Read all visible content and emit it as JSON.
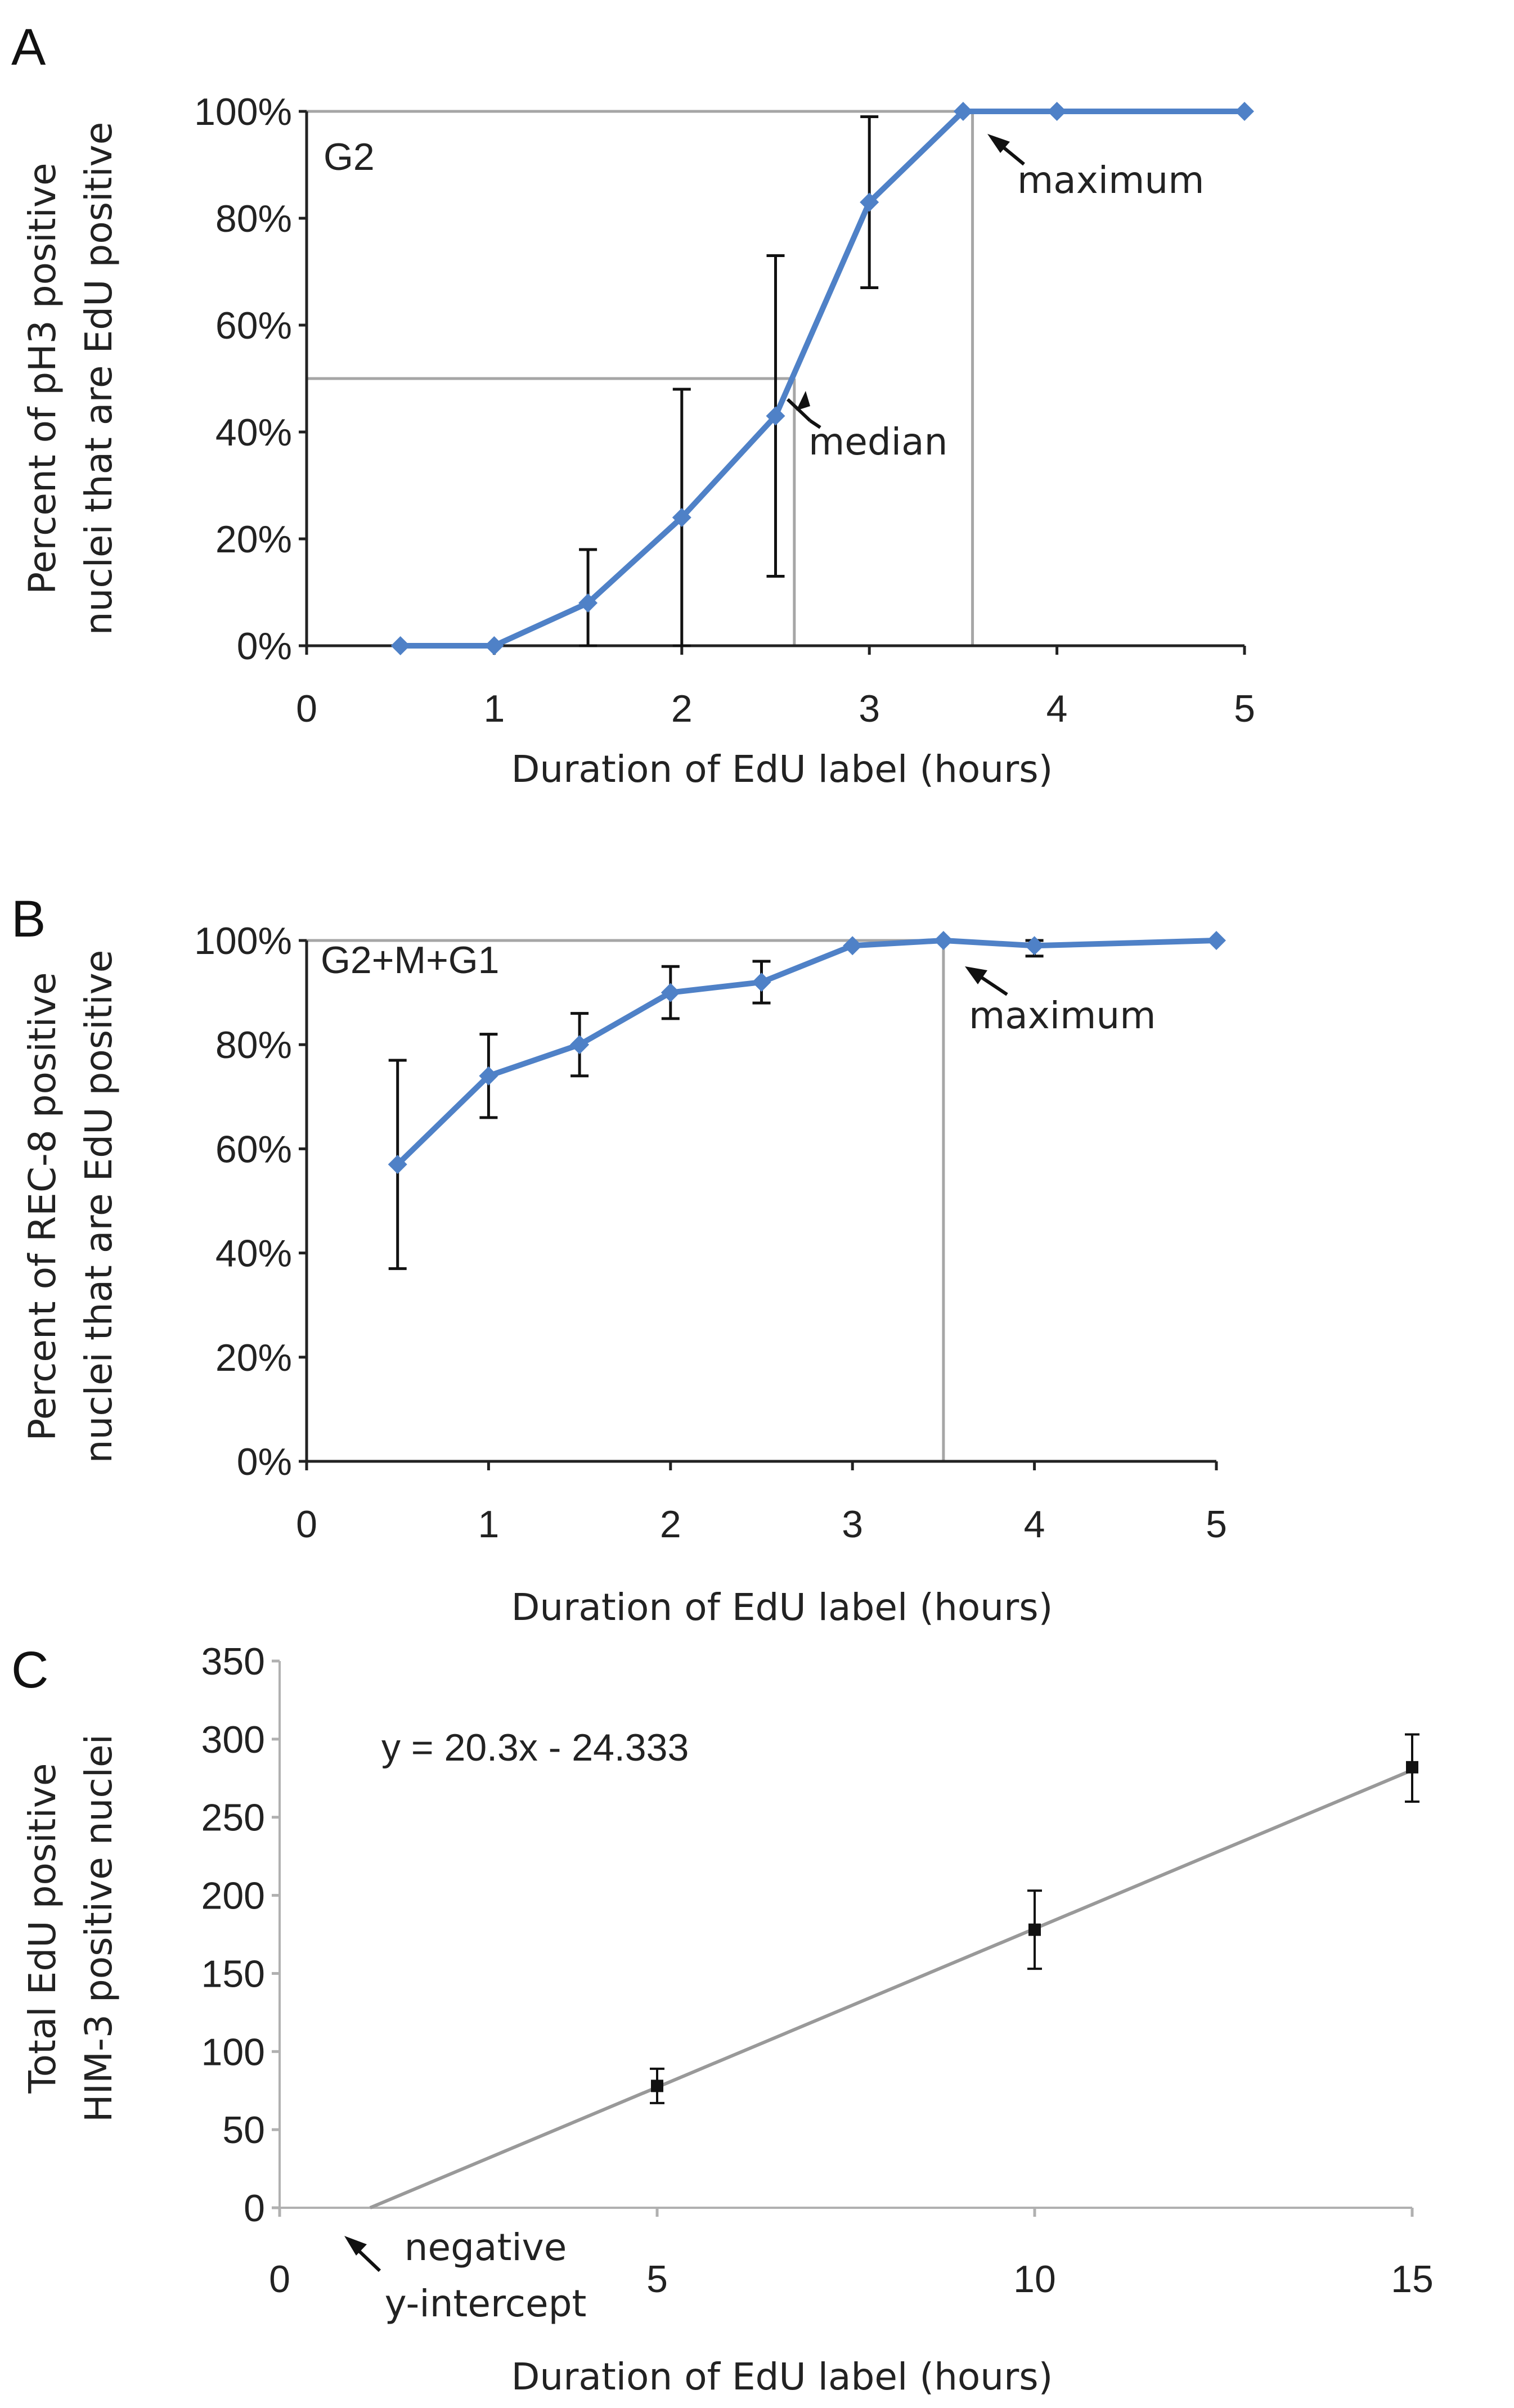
{
  "chart_data": [
    {
      "panel": "A",
      "type": "line",
      "inset_label": "G2",
      "xlabel": "Duration of EdU label (hours)",
      "ylabel": [
        "Percent of pH3 positive",
        "nuclei that are EdU positive"
      ],
      "xlim": [
        0,
        5
      ],
      "ylim": [
        0,
        1
      ],
      "xticks": [
        "0",
        "1",
        "2",
        "3",
        "4",
        "5"
      ],
      "yticks": [
        "0%",
        "20%",
        "40%",
        "60%",
        "80%",
        "100%"
      ],
      "color": "#4f81c7",
      "series": [
        {
          "x": [
            0.5,
            1.0,
            1.5,
            2.0,
            2.5,
            3.0,
            3.5,
            4.0,
            5.0
          ],
          "y": [
            0.0,
            0.0,
            0.08,
            0.24,
            0.43,
            0.83,
            1.0,
            1.0,
            1.0
          ],
          "err_low": [
            null,
            null,
            0.0,
            0.0,
            0.13,
            0.67,
            null,
            null,
            null
          ],
          "err_high": [
            null,
            null,
            0.18,
            0.48,
            0.73,
            0.99,
            null,
            null,
            null
          ]
        }
      ],
      "reference_lines": [
        {
          "kind": "median",
          "x": 2.6,
          "y": 0.5
        },
        {
          "kind": "maximum",
          "x": 3.55,
          "y": 1.0
        }
      ],
      "annotations": [
        {
          "text": "maximum",
          "x": 3.5,
          "y": 1.0
        },
        {
          "text": "median",
          "x": 2.6,
          "y": 0.5
        }
      ]
    },
    {
      "panel": "B",
      "type": "line",
      "inset_label": "G2+M+G1",
      "xlabel": "Duration of EdU label (hours)",
      "ylabel": [
        "Percent of REC-8 positive",
        "nuclei that are EdU positive"
      ],
      "xlim": [
        0,
        5
      ],
      "ylim": [
        0,
        1
      ],
      "xticks": [
        "0",
        "1",
        "2",
        "3",
        "4",
        "5"
      ],
      "yticks": [
        "0%",
        "20%",
        "40%",
        "60%",
        "80%",
        "100%"
      ],
      "color": "#4f81c7",
      "series": [
        {
          "x": [
            0.5,
            1.0,
            1.5,
            2.0,
            2.5,
            3.0,
            3.5,
            4.0,
            5.0
          ],
          "y": [
            0.57,
            0.74,
            0.8,
            0.9,
            0.92,
            0.99,
            1.0,
            0.99,
            1.0
          ],
          "err_low": [
            0.37,
            0.66,
            0.74,
            0.85,
            0.88,
            null,
            null,
            0.97,
            null
          ],
          "err_high": [
            0.77,
            0.82,
            0.86,
            0.95,
            0.96,
            null,
            null,
            1.0,
            null
          ]
        }
      ],
      "reference_lines": [
        {
          "kind": "maximum",
          "x": 3.5,
          "y": 1.0
        }
      ],
      "annotations": [
        {
          "text": "maximum",
          "x": 3.5,
          "y": 1.0
        }
      ]
    },
    {
      "panel": "C",
      "type": "scatter",
      "xlabel": "Duration of EdU label (hours)",
      "ylabel": [
        "Total EdU positive",
        "HIM-3 positive nuclei"
      ],
      "xlim": [
        0,
        15
      ],
      "ylim": [
        0,
        350
      ],
      "xticks": [
        "0",
        "5",
        "10",
        "15"
      ],
      "yticks": [
        "0",
        "50",
        "100",
        "150",
        "200",
        "250",
        "300",
        "350"
      ],
      "equation": "y = 20.3x - 24.333",
      "trendline": {
        "slope": 20.3,
        "intercept": -24.333
      },
      "series": [
        {
          "x": [
            5,
            10,
            15
          ],
          "y": [
            78,
            178,
            282
          ],
          "err_low": [
            67,
            153,
            260
          ],
          "err_high": [
            89,
            203,
            303
          ]
        }
      ],
      "annotations": [
        {
          "text": [
            "negative",
            "y-intercept"
          ],
          "x": 1.2,
          "y": 0
        }
      ]
    }
  ]
}
